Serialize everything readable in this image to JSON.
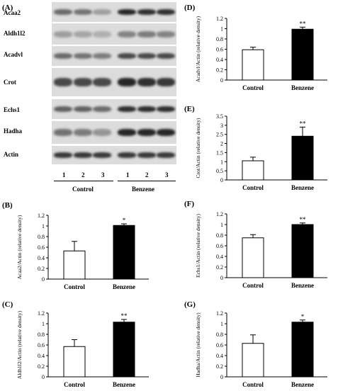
{
  "panel_letters": {
    "A": "(A)",
    "B": "(B)",
    "C": "(C)",
    "D": "(D)",
    "E": "(E)",
    "F": "(F)",
    "G": "(G)"
  },
  "western_blot": {
    "proteins": [
      "Acaa2",
      "Aldh1l2",
      "Acadvl",
      "Crot",
      "Echs1",
      "Hadha",
      "Actin"
    ],
    "lanes": [
      "1",
      "2",
      "3",
      "1",
      "2",
      "3"
    ],
    "groups": [
      "Control",
      "Benzene"
    ],
    "band_intensity": [
      [
        0.55,
        0.5,
        0.25,
        0.95,
        0.9,
        0.9
      ],
      [
        0.25,
        0.2,
        0.15,
        0.4,
        0.45,
        0.4
      ],
      [
        0.55,
        0.5,
        0.45,
        0.75,
        0.75,
        0.75
      ],
      [
        0.75,
        0.75,
        0.75,
        0.95,
        0.9,
        0.85
      ],
      [
        0.6,
        0.6,
        0.55,
        0.9,
        0.9,
        0.9
      ],
      [
        0.5,
        0.45,
        0.3,
        0.95,
        0.95,
        0.95
      ],
      [
        0.85,
        0.85,
        0.85,
        0.85,
        0.85,
        0.85
      ]
    ]
  },
  "chart_data": [
    {
      "panel": "B",
      "type": "bar",
      "categories": [
        "Control",
        "Benzene"
      ],
      "values": [
        0.53,
        1.01
      ],
      "errors": [
        0.18,
        0.03
      ],
      "significance": [
        "",
        "*"
      ],
      "ylabel": "Acaa2/Actin (relative density)",
      "ylim": [
        0,
        1.2
      ],
      "yticks": [
        "0",
        "0.2",
        "0.4",
        "0.6",
        "0.8",
        "1",
        "1.2"
      ],
      "bar_colors": [
        "#ffffff",
        "#000000"
      ]
    },
    {
      "panel": "C",
      "type": "bar",
      "categories": [
        "Control",
        "Benzene"
      ],
      "values": [
        0.57,
        1.03
      ],
      "errors": [
        0.13,
        0.05
      ],
      "significance": [
        "",
        "**"
      ],
      "ylabel": "Aldh1l2/Actin (relative density)",
      "ylim": [
        0,
        1.2
      ],
      "yticks": [
        "0",
        "0.2",
        "0.4",
        "0.6",
        "0.8",
        "1",
        "1.2"
      ],
      "bar_colors": [
        "#ffffff",
        "#000000"
      ]
    },
    {
      "panel": "D",
      "type": "bar",
      "categories": [
        "Control",
        "Benzene"
      ],
      "values": [
        0.59,
        0.99
      ],
      "errors": [
        0.05,
        0.04
      ],
      "significance": [
        "",
        "**"
      ],
      "ylabel": "Acadvl/Actin (relative density)",
      "ylim": [
        0,
        1.2
      ],
      "yticks": [
        "0",
        "0.2",
        "0.4",
        "0.6",
        "0.8",
        "1",
        "1.2"
      ],
      "bar_colors": [
        "#ffffff",
        "#000000"
      ]
    },
    {
      "panel": "E",
      "type": "bar",
      "categories": [
        "Control",
        "Benzene"
      ],
      "values": [
        1.05,
        2.4
      ],
      "errors": [
        0.2,
        0.5
      ],
      "significance": [
        "",
        "**"
      ],
      "ylabel": "Crot/Actin (relative density)",
      "ylim": [
        0,
        3.5
      ],
      "yticks": [
        "0",
        "0.5",
        "1",
        "1.5",
        "2",
        "2.5",
        "3",
        "3.5"
      ],
      "bar_colors": [
        "#ffffff",
        "#000000"
      ]
    },
    {
      "panel": "F",
      "type": "bar",
      "categories": [
        "Control",
        "Benzene"
      ],
      "values": [
        0.75,
        1.0
      ],
      "errors": [
        0.06,
        0.03
      ],
      "significance": [
        "",
        "**"
      ],
      "ylabel": "Echs1/Actin (relative density)",
      "ylim": [
        0,
        1.2
      ],
      "yticks": [
        "0",
        "0.2",
        "0.4",
        "0.6",
        "0.8",
        "1",
        "1.2"
      ],
      "bar_colors": [
        "#ffffff",
        "#000000"
      ]
    },
    {
      "panel": "G",
      "type": "bar",
      "categories": [
        "Control",
        "Benzene"
      ],
      "values": [
        0.63,
        1.03
      ],
      "errors": [
        0.16,
        0.04
      ],
      "significance": [
        "",
        "*"
      ],
      "ylabel": "Hadha/Actin (relative density)",
      "ylim": [
        0,
        1.2
      ],
      "yticks": [
        "0",
        "0.2",
        "0.4",
        "0.6",
        "0.8",
        "1",
        "1.2"
      ],
      "bar_colors": [
        "#ffffff",
        "#000000"
      ]
    }
  ]
}
